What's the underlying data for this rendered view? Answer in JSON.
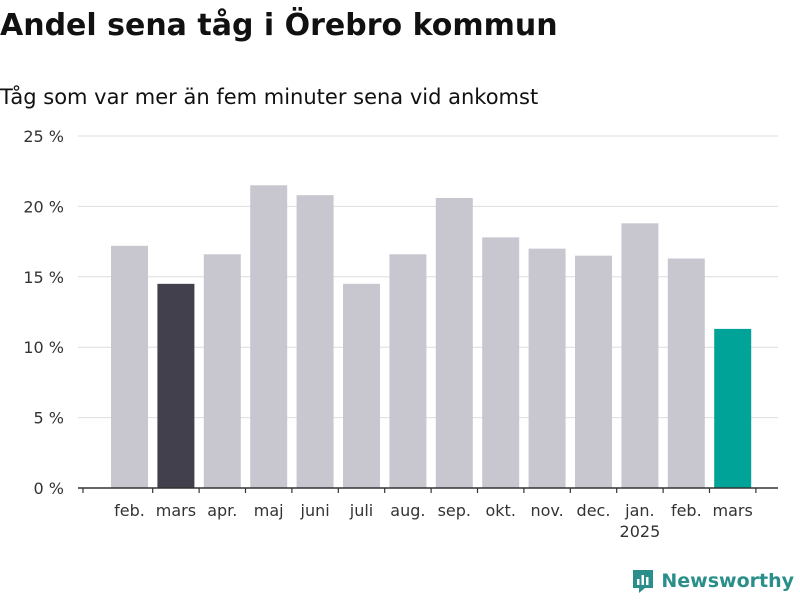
{
  "title": "Andel sena tåg i Örebro kommun",
  "subtitle": "Tåg som var mer än fem minuter sena vid ankomst",
  "brand": "Newsworthy",
  "colors": {
    "default": "#c8c7d0",
    "previous_year": "#41404c",
    "current": "#00a398",
    "grid": "#dddddd",
    "axis": "#333333",
    "brand": "#2a8f8a"
  },
  "chart_data": {
    "type": "bar",
    "categories": [
      "feb.",
      "mars",
      "apr.",
      "maj",
      "juni",
      "juli",
      "aug.",
      "sep.",
      "okt.",
      "nov.",
      "dec.",
      "jan.",
      "feb.",
      "mars"
    ],
    "category_sublabels": [
      "",
      "",
      "",
      "",
      "",
      "",
      "",
      "",
      "",
      "",
      "",
      "2025",
      "",
      ""
    ],
    "values": [
      17.2,
      14.5,
      16.6,
      21.5,
      20.8,
      14.5,
      16.6,
      20.6,
      17.8,
      17.0,
      16.5,
      18.8,
      16.3,
      11.3
    ],
    "highlight": [
      "default",
      "previous_year",
      "default",
      "default",
      "default",
      "default",
      "default",
      "default",
      "default",
      "default",
      "default",
      "default",
      "default",
      "current"
    ],
    "ylim": [
      0,
      25
    ],
    "yticks": [
      0,
      5,
      10,
      15,
      20,
      25
    ],
    "ytick_labels": [
      "0 %",
      "5 %",
      "10 %",
      "15 %",
      "20 %",
      "25 %"
    ],
    "grid": true
  }
}
